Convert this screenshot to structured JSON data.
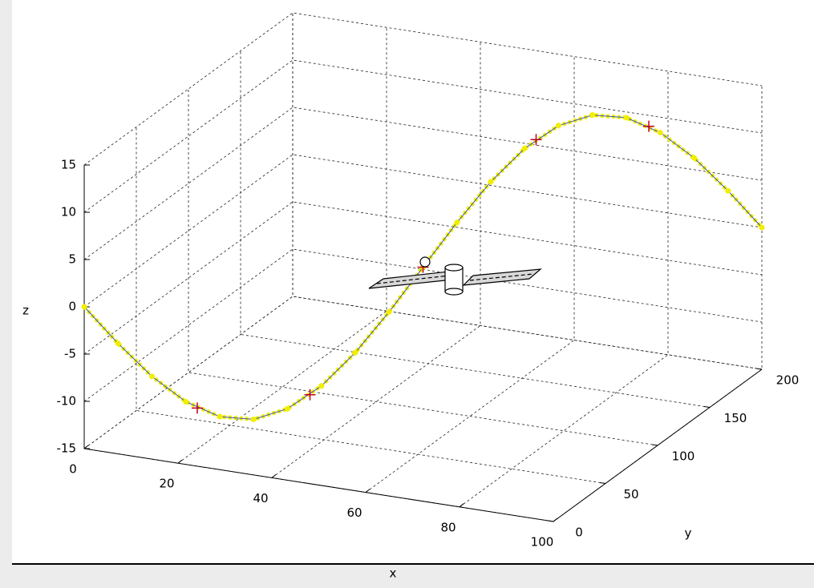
{
  "chart_data": {
    "type": "line3d",
    "xlabel": "x",
    "ylabel": "y",
    "zlabel": "z",
    "x": [
      0,
      5,
      10,
      15,
      20,
      25,
      30,
      35,
      40,
      45,
      50,
      55,
      60,
      65,
      70,
      75,
      80,
      85,
      90,
      95,
      100
    ],
    "y": [
      0,
      10,
      20,
      30,
      40,
      50,
      60,
      70,
      80,
      90,
      100,
      110,
      120,
      130,
      140,
      150,
      160,
      170,
      180,
      190,
      200
    ],
    "z": [
      0,
      -4.3,
      -8.2,
      -11.3,
      -13.3,
      -14,
      -13.3,
      -11.3,
      -8.2,
      -4.3,
      0,
      4.3,
      8.2,
      11.3,
      13.3,
      14,
      13.3,
      11.3,
      8.2,
      4.3,
      0
    ],
    "color": "#f2ee00",
    "line_color": "#3a55a0",
    "markers": {
      "x": [
        16.7,
        33.3,
        50,
        66.7,
        83.3
      ],
      "y": [
        33.3,
        66.7,
        100,
        133.3,
        166.7
      ],
      "z": [
        -12.1,
        -12.1,
        0,
        12.1,
        12.1
      ],
      "color": "#c0002a"
    },
    "xlim": [
      0,
      100
    ],
    "ylim": [
      0,
      200
    ],
    "zlim": [
      -15,
      15
    ],
    "xticks": [
      0,
      20,
      40,
      60,
      80,
      100
    ],
    "yticks": [
      0,
      50,
      100,
      150,
      200
    ],
    "zticks": [
      -15,
      -10,
      -5,
      0,
      5,
      10,
      15
    ],
    "grid": true
  }
}
